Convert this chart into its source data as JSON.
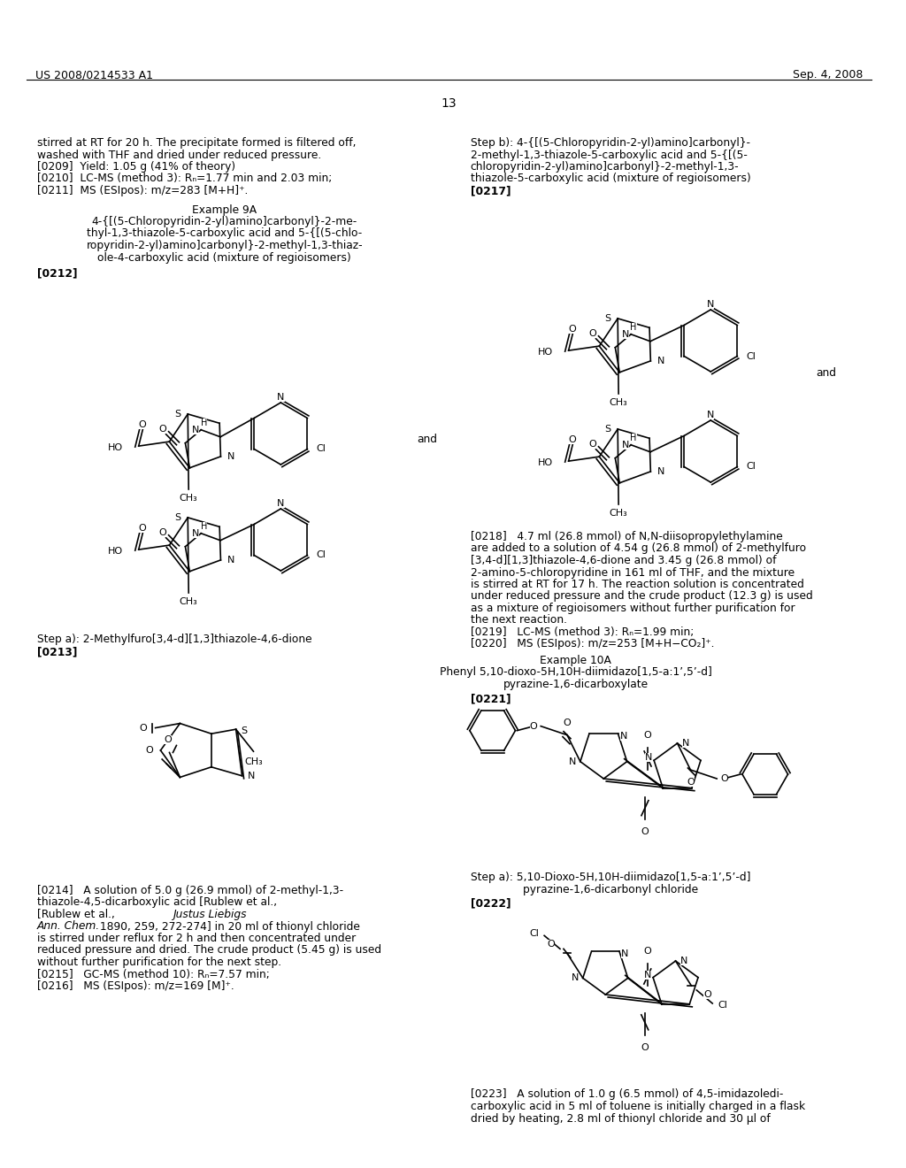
{
  "bg": "#ffffff",
  "tc": "#000000",
  "header_left": "US 2008/0214533 A1",
  "header_right": "Sep. 4, 2008",
  "page_num": "13"
}
